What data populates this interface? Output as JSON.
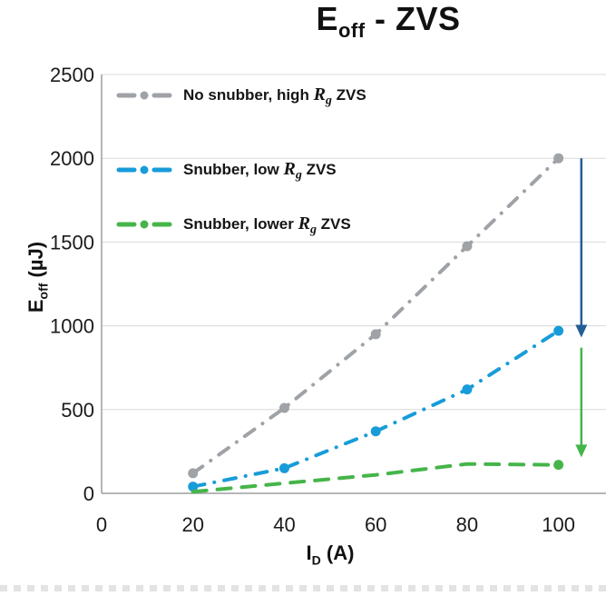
{
  "page": {
    "background": "#ffffff"
  },
  "chart_data": {
    "type": "line",
    "title": "Eoff - ZVS",
    "title_parts": {
      "main": "E",
      "sub": "off",
      "rest": " - ZVS"
    },
    "xlabel": "ID (A)",
    "xlabel_parts": {
      "main": "I",
      "sub": "D",
      "rest": " (A)"
    },
    "ylabel": "Eoff (µJ)",
    "ylabel_parts": {
      "main": "E",
      "sub": "off",
      "rest": " (µJ)"
    },
    "xlim": [
      0,
      110
    ],
    "ylim": [
      0,
      2500
    ],
    "x_ticks": [
      0,
      20,
      40,
      60,
      80,
      100
    ],
    "y_ticks": [
      0,
      500,
      1000,
      1500,
      2000,
      2500
    ],
    "grid": true,
    "legend_position": "top-left-inside",
    "x": [
      20,
      40,
      60,
      80,
      100
    ],
    "series": [
      {
        "name": "No snubber, high Rg ZVS",
        "label_parts": {
          "pre": "No snubber, high ",
          "var": "R",
          "var_sub": "g",
          "post": " ZVS"
        },
        "color": "#9fa2a6",
        "line_style": "dash-dot",
        "markers": "all",
        "values": [
          120,
          510,
          950,
          1475,
          2000
        ]
      },
      {
        "name": "Snubber, low Rg ZVS",
        "label_parts": {
          "pre": "Snubber, low ",
          "var": "R",
          "var_sub": "g",
          "post": " ZVS"
        },
        "color": "#189cd9",
        "line_style": "dash-dot",
        "markers": "all",
        "values": [
          40,
          150,
          370,
          620,
          970
        ]
      },
      {
        "name": "Snubber, lower Rg ZVS",
        "label_parts": {
          "pre": "Snubber, lower ",
          "var": "R",
          "var_sub": "g",
          "post": " ZVS"
        },
        "color": "#45b549",
        "line_style": "dash",
        "markers": "last",
        "values": [
          10,
          60,
          110,
          175,
          170
        ]
      }
    ],
    "arrows": [
      {
        "name": "reduction-arrow-high-to-low",
        "color": "#235d96",
        "x": 105,
        "from": 2000,
        "to": 930
      },
      {
        "name": "reduction-arrow-low-to-lower",
        "color": "#45b549",
        "x": 105,
        "from": 870,
        "to": 215
      }
    ]
  },
  "colors": {
    "grid": "#d9d9d9",
    "axis": "#9e9e9e",
    "tick_text": "#1b1b1b",
    "divider": "#e3e3e3"
  }
}
